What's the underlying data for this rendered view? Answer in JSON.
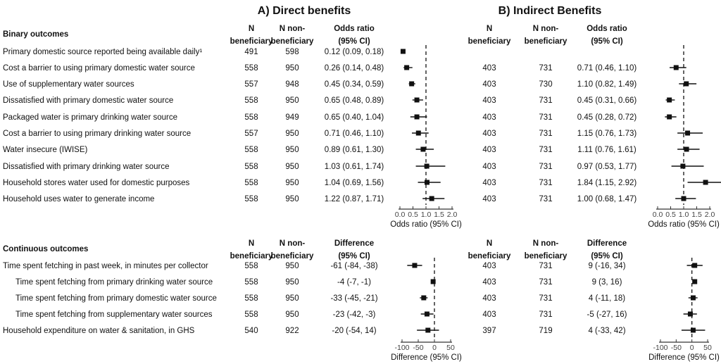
{
  "titles": {
    "a": "A) Direct benefits",
    "b": "B) Indirect Benefits"
  },
  "columns": {
    "n_ben": [
      "N",
      "beneficiary"
    ],
    "n_non": [
      "N non-",
      "beneficiary"
    ],
    "odds": [
      "Odds ratio",
      "(95% CI)"
    ],
    "diff": [
      "Difference",
      "(95% CI)"
    ]
  },
  "sections": {
    "binary": {
      "heading": "Binary outcomes",
      "outcomes": [
        "Primary domestic source reported being available daily¹",
        "Cost a barrier to using primary domestic water source",
        "Use of supplementary water sources",
        "Dissatisfied with primary domestic water source",
        "Packaged water is primary drinking water source",
        "Cost a barrier to using primary drinking water source",
        "Water insecure (IWISE)",
        "Dissatisfied with primary drinking water source",
        "Household stores water used for domestic purposes",
        "Household uses water to generate income"
      ],
      "indent": [
        false,
        false,
        false,
        false,
        false,
        false,
        false,
        false,
        false,
        false
      ]
    },
    "continuous": {
      "heading": "Continuous outcomes",
      "outcomes": [
        "Time spent fetching in past week, in minutes per collector",
        "Time spent fetching from primary drinking water source",
        "Time spent fetching from primary domestic water source",
        "Time spent fetching from supplementary water sources",
        "Household expenditure on water & sanitation, in GHS"
      ],
      "indent": [
        false,
        true,
        true,
        true,
        false
      ]
    }
  },
  "chart_data": [
    {
      "type": "forest",
      "panel": "A) Direct benefits",
      "section": "binary",
      "xlabel": "Odds ratio (95% CI)",
      "xlim": [
        0,
        2
      ],
      "ticks": [
        "0.0",
        "0.5",
        "1.0",
        "1.5",
        "2.0"
      ],
      "reference_line": 1,
      "decimals": 2,
      "rows": [
        {
          "n_ben": 491,
          "n_non": 598,
          "est": 0.12,
          "lo": 0.09,
          "hi": 0.18
        },
        {
          "n_ben": 558,
          "n_non": 950,
          "est": 0.26,
          "lo": 0.14,
          "hi": 0.48
        },
        {
          "n_ben": 557,
          "n_non": 948,
          "est": 0.45,
          "lo": 0.34,
          "hi": 0.59
        },
        {
          "n_ben": 558,
          "n_non": 950,
          "est": 0.65,
          "lo": 0.48,
          "hi": 0.89
        },
        {
          "n_ben": 558,
          "n_non": 949,
          "est": 0.65,
          "lo": 0.4,
          "hi": 1.04
        },
        {
          "n_ben": 557,
          "n_non": 950,
          "est": 0.71,
          "lo": 0.46,
          "hi": 1.1
        },
        {
          "n_ben": 558,
          "n_non": 950,
          "est": 0.89,
          "lo": 0.61,
          "hi": 1.3
        },
        {
          "n_ben": 558,
          "n_non": 950,
          "est": 1.03,
          "lo": 0.61,
          "hi": 1.74
        },
        {
          "n_ben": 558,
          "n_non": 950,
          "est": 1.04,
          "lo": 0.69,
          "hi": 1.56
        },
        {
          "n_ben": 558,
          "n_non": 950,
          "est": 1.22,
          "lo": 0.87,
          "hi": 1.71
        }
      ]
    },
    {
      "type": "forest",
      "panel": "B) Indirect Benefits",
      "section": "binary",
      "xlabel": "Odds ratio (95% CI)",
      "xlim": [
        0,
        2
      ],
      "ticks": [
        "0.0",
        "0.5",
        "1.0",
        "1.5",
        "2.0"
      ],
      "reference_line": 1,
      "decimals": 2,
      "rows": [
        null,
        {
          "n_ben": 403,
          "n_non": 731,
          "est": 0.71,
          "lo": 0.46,
          "hi": 1.1
        },
        {
          "n_ben": 403,
          "n_non": 730,
          "est": 1.1,
          "lo": 0.82,
          "hi": 1.49
        },
        {
          "n_ben": 403,
          "n_non": 731,
          "est": 0.45,
          "lo": 0.31,
          "hi": 0.66
        },
        {
          "n_ben": 403,
          "n_non": 731,
          "est": 0.45,
          "lo": 0.28,
          "hi": 0.72
        },
        {
          "n_ben": 403,
          "n_non": 731,
          "est": 1.15,
          "lo": 0.76,
          "hi": 1.73
        },
        {
          "n_ben": 403,
          "n_non": 731,
          "est": 1.11,
          "lo": 0.76,
          "hi": 1.61
        },
        {
          "n_ben": 403,
          "n_non": 731,
          "est": 0.97,
          "lo": 0.53,
          "hi": 1.77
        },
        {
          "n_ben": 403,
          "n_non": 731,
          "est": 1.84,
          "lo": 1.15,
          "hi": 2.92
        },
        {
          "n_ben": 403,
          "n_non": 731,
          "est": 1.0,
          "lo": 0.68,
          "hi": 1.47
        }
      ]
    },
    {
      "type": "forest",
      "panel": "A) Direct benefits",
      "section": "continuous",
      "xlabel": "Difference (95% CI)",
      "xlim": [
        -100,
        50
      ],
      "ticks": [
        "-100",
        "-50",
        "0",
        "50"
      ],
      "reference_line": 0,
      "decimals": 0,
      "rows": [
        {
          "n_ben": 558,
          "n_non": 950,
          "est": -61,
          "lo": -84,
          "hi": -38
        },
        {
          "n_ben": 558,
          "n_non": 950,
          "est": -4,
          "lo": -7,
          "hi": -1
        },
        {
          "n_ben": 558,
          "n_non": 950,
          "est": -33,
          "lo": -45,
          "hi": -21
        },
        {
          "n_ben": 558,
          "n_non": 950,
          "est": -23,
          "lo": -42,
          "hi": -3
        },
        {
          "n_ben": 540,
          "n_non": 922,
          "est": -20,
          "lo": -54,
          "hi": 14
        }
      ]
    },
    {
      "type": "forest",
      "panel": "B) Indirect Benefits",
      "section": "continuous",
      "xlabel": "Difference (95% CI)",
      "xlim": [
        -100,
        50
      ],
      "ticks": [
        "-100",
        "-50",
        "0",
        "50"
      ],
      "reference_line": 0,
      "decimals": 0,
      "rows": [
        {
          "n_ben": 403,
          "n_non": 731,
          "est": 9,
          "lo": -16,
          "hi": 34
        },
        {
          "n_ben": 403,
          "n_non": 731,
          "est": 9,
          "lo": 3,
          "hi": 16
        },
        {
          "n_ben": 403,
          "n_non": 731,
          "est": 4,
          "lo": -11,
          "hi": 18
        },
        {
          "n_ben": 403,
          "n_non": 731,
          "est": -5,
          "lo": -27,
          "hi": 16
        },
        {
          "n_ben": 397,
          "n_non": 719,
          "est": 4,
          "lo": -33,
          "hi": 42
        }
      ]
    }
  ]
}
